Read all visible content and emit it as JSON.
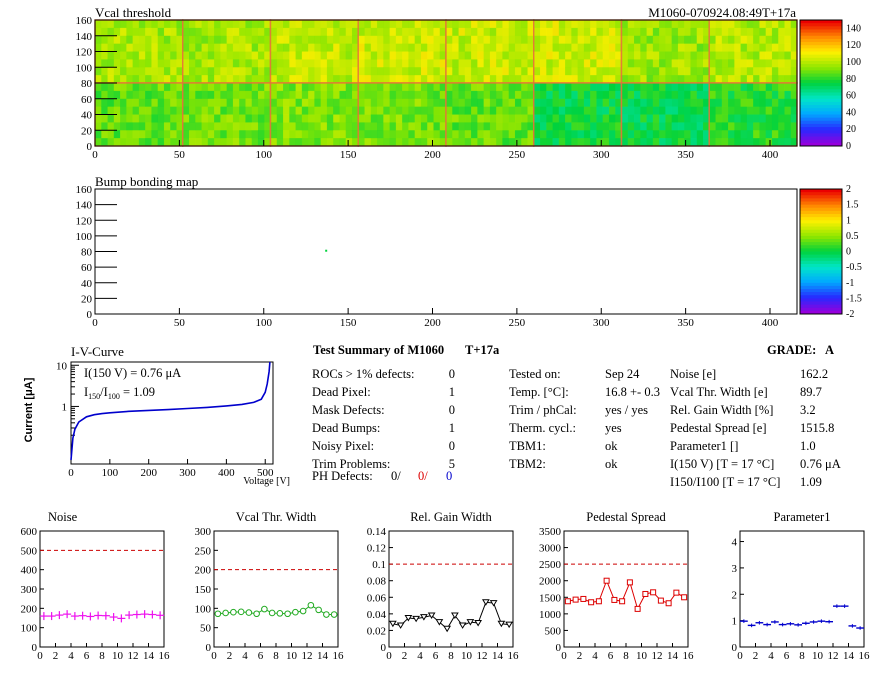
{
  "header": {
    "left_title": "Vcal threshold",
    "right_title": "M1060-070924.08:49T+17a"
  },
  "colors": {
    "pink": "#ee11ee",
    "green": "#22aa22",
    "black": "#000000",
    "red": "#dd0000",
    "blue": "#0000cc",
    "dashed_limit": "#cc0000"
  },
  "chart_data": [
    {
      "id": "vcal_map",
      "type": "heatmap",
      "title": "Vcal threshold",
      "xlim": [
        0,
        416
      ],
      "ylim": [
        0,
        160
      ],
      "x_ticks": [
        0,
        50,
        100,
        150,
        200,
        250,
        300,
        350,
        400
      ],
      "y_ticks": [
        0,
        20,
        40,
        60,
        80,
        100,
        120,
        140,
        160
      ],
      "z_range": [
        0,
        150
      ],
      "z_ticks": [
        0,
        20,
        40,
        60,
        80,
        100,
        120,
        140
      ],
      "roc_mean_values": [
        [
          88,
          90,
          92,
          90,
          88,
          75,
          74,
          80
        ],
        [
          98,
          98,
          102,
          104,
          103,
          104,
          96,
          100
        ]
      ]
    },
    {
      "id": "bump_map",
      "type": "heatmap",
      "title": "Bump bonding map",
      "xlim": [
        0,
        416
      ],
      "ylim": [
        0,
        160
      ],
      "x_ticks": [
        0,
        50,
        100,
        150,
        200,
        250,
        300,
        350,
        400
      ],
      "y_ticks": [
        0,
        20,
        40,
        60,
        80,
        100,
        120,
        140,
        160
      ],
      "z_range": [
        -2,
        2
      ],
      "z_ticks": [
        "2",
        "1.5",
        "1",
        "0.5",
        "0",
        "-0.5",
        "-1",
        "-1.5",
        "-2"
      ],
      "points": [
        {
          "x": 137,
          "y": 81,
          "z": 0
        }
      ]
    },
    {
      "id": "iv_curve",
      "type": "line",
      "title": "I-V-Curve",
      "xlabel": "Voltage [V]",
      "ylabel": "Current [μA]",
      "log_y": true,
      "xlim": [
        0,
        520
      ],
      "ylim": [
        0.04,
        12
      ],
      "x_ticks": [
        0,
        100,
        200,
        300,
        400,
        500
      ],
      "y_ticks": [
        {
          "v": 10,
          "label": "10"
        },
        {
          "v": 1,
          "label": "1"
        }
      ],
      "annotations": [
        "I(150 V) = 0.76 μA",
        "I150/I100 = 1.09"
      ],
      "x": [
        0,
        5,
        10,
        20,
        40,
        60,
        80,
        100,
        150,
        200,
        250,
        300,
        350,
        400,
        440,
        470,
        490,
        500,
        505,
        510,
        512
      ],
      "y": [
        0.05,
        0.17,
        0.28,
        0.42,
        0.56,
        0.63,
        0.67,
        0.7,
        0.76,
        0.8,
        0.84,
        0.89,
        0.95,
        1.03,
        1.12,
        1.25,
        1.5,
        2.2,
        3.5,
        7.0,
        12
      ]
    },
    {
      "id": "noise",
      "type": "scatter",
      "title": "Noise",
      "xlim": [
        0,
        16
      ],
      "ylim": [
        0,
        600
      ],
      "x_ticks": [
        0,
        2,
        4,
        6,
        8,
        10,
        12,
        14,
        16
      ],
      "y_ticks": [
        0,
        100,
        200,
        300,
        400,
        500,
        600
      ],
      "limit": 500,
      "marker": "cross",
      "color": "#ee11ee",
      "x": [
        0,
        1,
        2,
        3,
        4,
        5,
        6,
        7,
        8,
        9,
        10,
        11,
        12,
        13,
        14,
        15
      ],
      "values": [
        160,
        160,
        165,
        170,
        160,
        162,
        158,
        163,
        162,
        155,
        148,
        165,
        168,
        170,
        168,
        164
      ]
    },
    {
      "id": "vcal_width",
      "type": "line",
      "title": "Vcal Thr. Width",
      "xlim": [
        0,
        16
      ],
      "ylim": [
        0,
        300
      ],
      "x_ticks": [
        0,
        2,
        4,
        6,
        8,
        10,
        12,
        14,
        16
      ],
      "y_ticks": [
        0,
        50,
        100,
        150,
        200,
        250,
        300
      ],
      "limit": 200,
      "marker": "circle",
      "color": "#22aa22",
      "x": [
        0,
        1,
        2,
        3,
        4,
        5,
        6,
        7,
        8,
        9,
        10,
        11,
        12,
        13,
        14,
        15
      ],
      "values": [
        86,
        88,
        90,
        91,
        89,
        86,
        98,
        88,
        87,
        86,
        90,
        93,
        108,
        96,
        84,
        84
      ]
    },
    {
      "id": "gain_width",
      "type": "line",
      "title": "Rel. Gain Width",
      "xlim": [
        0,
        16
      ],
      "ylim": [
        0,
        0.14
      ],
      "x_ticks": [
        0,
        2,
        4,
        6,
        8,
        10,
        12,
        14,
        16
      ],
      "y_ticks": [
        0,
        0.02,
        0.04,
        0.06,
        0.08,
        0.1,
        0.12,
        0.14
      ],
      "limit": 0.1,
      "marker": "triangle",
      "color": "#000000",
      "x": [
        0,
        1,
        2,
        3,
        4,
        5,
        6,
        7,
        8,
        9,
        10,
        11,
        12,
        13,
        14,
        15
      ],
      "values": [
        0.028,
        0.026,
        0.035,
        0.034,
        0.036,
        0.038,
        0.03,
        0.022,
        0.038,
        0.026,
        0.03,
        0.029,
        0.054,
        0.053,
        0.028,
        0.027
      ]
    },
    {
      "id": "pedestal_spread",
      "type": "line",
      "title": "Pedestal Spread",
      "xlim": [
        0,
        16
      ],
      "ylim": [
        0,
        3500
      ],
      "x_ticks": [
        0,
        2,
        4,
        6,
        8,
        10,
        12,
        14,
        16
      ],
      "y_ticks": [
        0,
        500,
        1000,
        1500,
        2000,
        2500,
        3000,
        3500
      ],
      "limit": 2500,
      "marker": "square",
      "color": "#dd0000",
      "x": [
        0,
        1,
        2,
        3,
        4,
        5,
        6,
        7,
        8,
        9,
        10,
        11,
        12,
        13,
        14,
        15
      ],
      "values": [
        1380,
        1430,
        1450,
        1350,
        1380,
        2000,
        1420,
        1380,
        1950,
        1150,
        1600,
        1650,
        1400,
        1320,
        1640,
        1500
      ]
    },
    {
      "id": "parameter1",
      "type": "scatter",
      "title": "Parameter1",
      "xlim": [
        0,
        16
      ],
      "ylim": [
        0,
        4.4
      ],
      "x_ticks": [
        0,
        2,
        4,
        6,
        8,
        10,
        12,
        14,
        16
      ],
      "y_ticks": [
        0,
        1,
        2,
        3,
        4
      ],
      "marker": "hbar",
      "color": "#0000cc",
      "x": [
        0,
        1,
        2,
        3,
        4,
        5,
        6,
        7,
        8,
        9,
        10,
        11,
        12,
        13,
        14,
        15
      ],
      "values": [
        0.98,
        0.82,
        0.92,
        0.85,
        0.95,
        0.85,
        0.88,
        0.84,
        0.9,
        0.95,
        0.98,
        0.96,
        1.55,
        1.55,
        0.8,
        0.72
      ]
    }
  ],
  "summary": {
    "title": "Test Summary of M1060",
    "tag": "T+17a",
    "grade_label": "GRADE:",
    "grade_value": "A",
    "defects": [
      {
        "label": "ROCs > 1% defects:",
        "value": "0"
      },
      {
        "label": "Dead Pixel:",
        "value": "1"
      },
      {
        "label": "Mask Defects:",
        "value": "0"
      },
      {
        "label": "Dead Bumps:",
        "value": "1"
      },
      {
        "label": "Noisy Pixel:",
        "value": "0"
      },
      {
        "label": "Trim Problems:",
        "value": "5"
      }
    ],
    "ph_label": "PH Defects:",
    "ph_values": [
      "0/",
      "0/",
      "0"
    ],
    "info": [
      {
        "label": "Tested on:",
        "value": "Sep 24"
      },
      {
        "label": "Temp. [°C]:",
        "value": "16.8 +- 0.3"
      },
      {
        "label": "Trim / phCal:",
        "value": "yes / yes"
      },
      {
        "label": "Therm. cycl.:",
        "value": "yes"
      },
      {
        "label": "TBM1:",
        "value": "ok"
      },
      {
        "label": "TBM2:",
        "value": "ok"
      }
    ],
    "params": [
      {
        "label": "Noise [e]",
        "value": "162.2"
      },
      {
        "label": "Vcal Thr. Width [e]",
        "value": "89.7"
      },
      {
        "label": "Rel. Gain Width [%]",
        "value": "3.2"
      },
      {
        "label": "Pedestal Spread [e]",
        "value": "1515.8"
      },
      {
        "label": "Parameter1 []",
        "value": "1.0"
      },
      {
        "label": "I(150 V) [T = 17 °C]",
        "value": "0.76 μA"
      },
      {
        "label": "I150/I100 [T = 17 °C]",
        "value": "1.09"
      }
    ]
  }
}
